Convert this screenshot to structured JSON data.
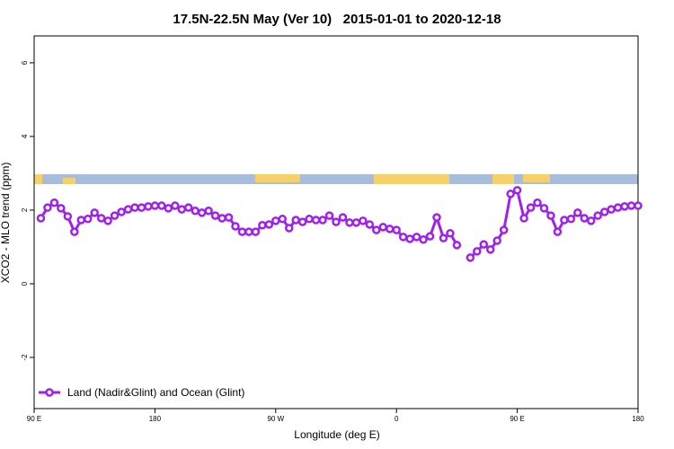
{
  "chart_data": {
    "type": "line",
    "title": "17.5N-22.5N May (Ver 10)   2015-01-01 to 2020-12-18",
    "xlabel": "Longitude (deg E)",
    "ylabel": "XCO2 - MLO trend (ppm)",
    "xlim": [
      90,
      540
    ],
    "ylim": [
      -3.39,
      6.73
    ],
    "xticks": [
      {
        "value": 90,
        "label": "90 E"
      },
      180,
      {
        "value": 270,
        "label": "90 W"
      },
      {
        "value": 360,
        "label": "0"
      },
      {
        "value": 450,
        "label": "90 E"
      },
      {
        "value": 540,
        "label": "180"
      }
    ],
    "yticks": [
      -2,
      0,
      2,
      4,
      6
    ],
    "legend": "bottom-left",
    "x": [
      95,
      100,
      105,
      110,
      115,
      120,
      125,
      130,
      135,
      140,
      145,
      150,
      155,
      160,
      165,
      170,
      175,
      180,
      185,
      190,
      195,
      200,
      205,
      210,
      215,
      220,
      225,
      230,
      235,
      240,
      245,
      250,
      255,
      260,
      265,
      270,
      275,
      280,
      285,
      290,
      295,
      300,
      305,
      310,
      315,
      320,
      325,
      330,
      335,
      340,
      345,
      350,
      355,
      360,
      365,
      370,
      375,
      380,
      385,
      390,
      395,
      400,
      405,
      410,
      415,
      420,
      425,
      430,
      435,
      440,
      445,
      450,
      455,
      460,
      465,
      470,
      475,
      480,
      485,
      490,
      495,
      500,
      505,
      510,
      515,
      520,
      525,
      530,
      535,
      540
    ],
    "series": [
      {
        "name": "Land (Nadir&Glint) and Ocean (Glint)",
        "color": "#a020f0",
        "values": [
          1.78,
          2.07,
          2.2,
          2.05,
          1.83,
          1.41,
          1.73,
          1.76,
          1.93,
          1.78,
          1.71,
          1.85,
          1.95,
          2.02,
          2.07,
          2.07,
          2.1,
          2.12,
          2.12,
          2.05,
          2.12,
          2.02,
          2.07,
          1.98,
          1.93,
          1.98,
          1.85,
          1.78,
          1.8,
          1.56,
          1.41,
          1.41,
          1.41,
          1.59,
          1.61,
          1.71,
          1.76,
          1.51,
          1.73,
          1.68,
          1.76,
          1.73,
          1.73,
          1.85,
          1.68,
          1.8,
          1.66,
          1.66,
          1.71,
          1.61,
          1.46,
          1.54,
          1.49,
          1.46,
          1.27,
          1.22,
          1.27,
          1.2,
          1.29,
          1.8,
          1.24,
          1.37,
          1.05,
          null,
          0.71,
          0.88,
          1.07,
          0.93,
          1.17,
          1.46,
          2.44,
          2.54,
          1.78,
          2.07,
          2.2,
          2.05,
          1.85,
          1.41,
          1.73,
          1.76,
          1.93,
          1.78,
          1.71,
          1.85,
          1.95,
          2.02,
          2.07,
          2.1,
          2.12,
          2.12
        ]
      }
    ]
  }
}
